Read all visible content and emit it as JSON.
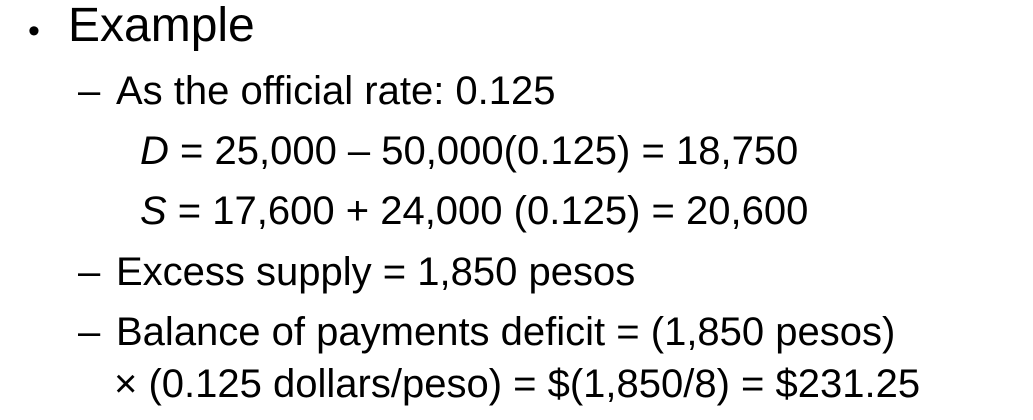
{
  "bullet": {
    "symbol": "•",
    "heading": "Example"
  },
  "items": [
    {
      "dash": "–",
      "text": "As the official rate: 0.125"
    },
    {
      "dash": "–",
      "text": "Excess supply = 1,850 pesos"
    },
    {
      "dash": "–",
      "text": "Balance of payments deficit =  (1,850 pesos)",
      "continuation": "× (0.125 dollars/peso) = $(1,850/8) = $231.25"
    }
  ],
  "equations": [
    {
      "variable": "D",
      "expression": " = 25,000 – 50,000(0.125) = 18,750"
    },
    {
      "variable": "S",
      "expression": " = 17,600 + 24,000 (0.125) = 20,600"
    }
  ]
}
